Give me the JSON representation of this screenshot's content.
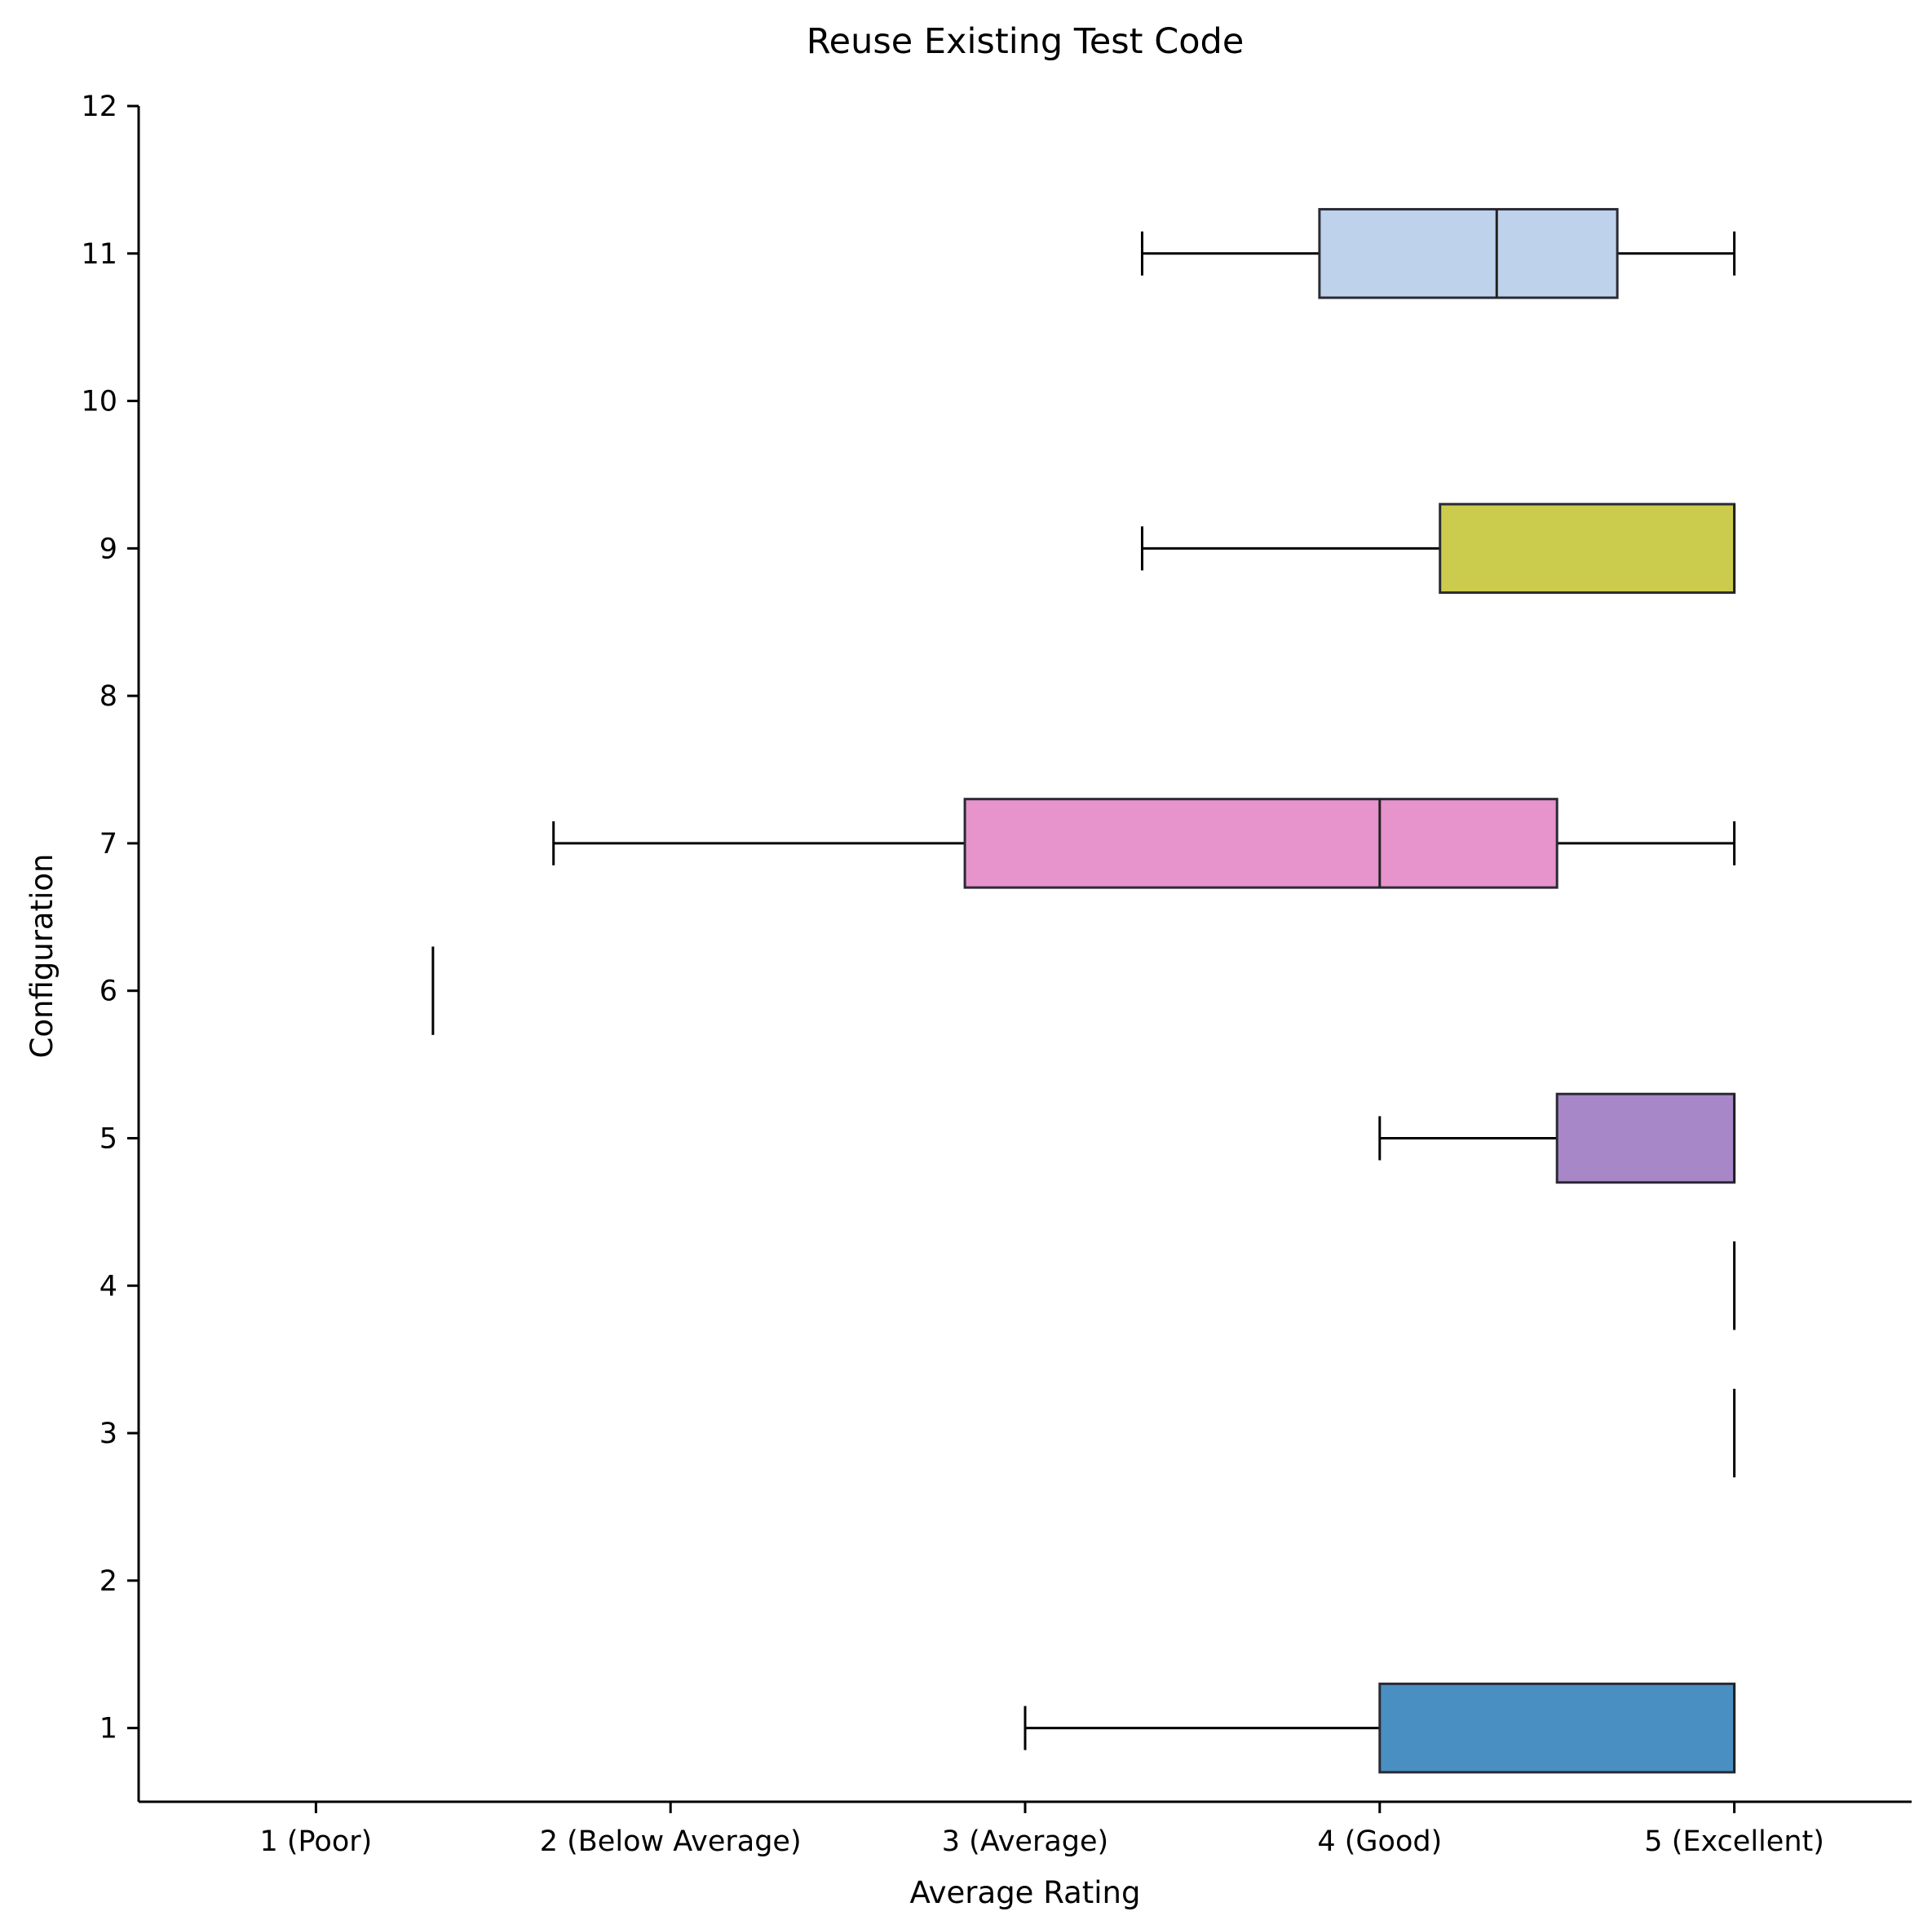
{
  "chart_data": {
    "type": "box",
    "title": "Reuse Existing Test Code",
    "xlabel": "Average Rating",
    "ylabel": "Configuration",
    "xlim": [
      0.5,
      5.5
    ],
    "ylim": [
      0.5,
      12
    ],
    "x_ticks": [
      {
        "value": 1,
        "label": "1 (Poor)"
      },
      {
        "value": 2,
        "label": "2 (Below Average)"
      },
      {
        "value": 3,
        "label": "3 (Average)"
      },
      {
        "value": 4,
        "label": "4 (Good)"
      },
      {
        "value": 5,
        "label": "5 (Excellent)"
      }
    ],
    "y_ticks": [
      {
        "value": 1,
        "label": "1"
      },
      {
        "value": 2,
        "label": "2"
      },
      {
        "value": 3,
        "label": "3"
      },
      {
        "value": 4,
        "label": "4"
      },
      {
        "value": 5,
        "label": "5"
      },
      {
        "value": 6,
        "label": "6"
      },
      {
        "value": 7,
        "label": "7"
      },
      {
        "value": 8,
        "label": "8"
      },
      {
        "value": 9,
        "label": "9"
      },
      {
        "value": 10,
        "label": "10"
      },
      {
        "value": 11,
        "label": "11"
      },
      {
        "value": 12,
        "label": "12"
      }
    ],
    "grid": false,
    "boxes": [
      {
        "config": 1,
        "whisker_low": 3.0,
        "q1": 4.0,
        "median": 5.0,
        "q3": 5.0,
        "whisker_high": 5.0,
        "color": "#4a8fc1"
      },
      {
        "config": 3,
        "whisker_low": 5.0,
        "q1": 5.0,
        "median": 5.0,
        "q3": 5.0,
        "whisker_high": 5.0,
        "color": "#ffffff"
      },
      {
        "config": 4,
        "whisker_low": 5.0,
        "q1": 5.0,
        "median": 5.0,
        "q3": 5.0,
        "whisker_high": 5.0,
        "color": "#ffffff"
      },
      {
        "config": 5,
        "whisker_low": 4.0,
        "q1": 4.5,
        "median": 5.0,
        "q3": 5.0,
        "whisker_high": 5.0,
        "color": "#a887c9"
      },
      {
        "config": 6,
        "whisker_low": 1.33,
        "q1": 1.33,
        "median": 1.33,
        "q3": 1.33,
        "whisker_high": 1.33,
        "color": "#ffffff"
      },
      {
        "config": 7,
        "whisker_low": 1.67,
        "q1": 2.83,
        "median": 4.0,
        "q3": 4.5,
        "whisker_high": 5.0,
        "color": "#e793cc"
      },
      {
        "config": 9,
        "whisker_low": 3.33,
        "q1": 4.17,
        "median": 5.0,
        "q3": 5.0,
        "whisker_high": 5.0,
        "color": "#cbcb4e"
      },
      {
        "config": 11,
        "whisker_low": 3.33,
        "q1": 3.83,
        "median": 4.33,
        "q3": 4.67,
        "whisker_high": 5.0,
        "color": "#bfd2eb"
      }
    ]
  }
}
